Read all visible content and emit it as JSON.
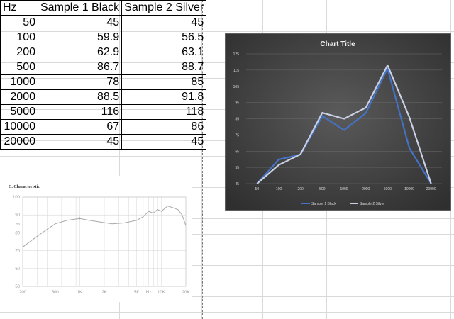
{
  "table": {
    "headers": [
      "Hz",
      "Sample 1 Black",
      "Sample 2 Silver"
    ],
    "rows": [
      [
        "50",
        "45",
        "45"
      ],
      [
        "100",
        "59.9",
        "56.5"
      ],
      [
        "200",
        "62.9",
        "63.1"
      ],
      [
        "500",
        "86.7",
        "88.7"
      ],
      [
        "1000",
        "78",
        "85"
      ],
      [
        "2000",
        "88.5",
        "91.8"
      ],
      [
        "5000",
        "116",
        "118"
      ],
      [
        "10000",
        "67",
        "86"
      ],
      [
        "20000",
        "45",
        "45"
      ]
    ]
  },
  "chart_data": {
    "type": "line",
    "title": "Chart Title",
    "categories": [
      "50",
      "100",
      "200",
      "500",
      "1000",
      "2000",
      "5000",
      "10000",
      "20000"
    ],
    "series": [
      {
        "name": "Sample 1 Black",
        "values": [
          45,
          59.9,
          62.9,
          86.7,
          78,
          88.5,
          116,
          67,
          45
        ],
        "color": "#4472c4"
      },
      {
        "name": "Sample 2 Silver",
        "values": [
          45,
          56.5,
          63.1,
          88.7,
          85,
          91.8,
          118,
          86,
          45
        ],
        "color": "#c9d0e6"
      }
    ],
    "ylim": [
      45,
      125
    ],
    "yticks": [
      "45",
      "55",
      "65",
      "75",
      "85",
      "95",
      "105",
      "115",
      "125"
    ],
    "grid": true,
    "legend": "bottom",
    "background": "#3f3f3f"
  },
  "characteristic": {
    "title": "C. Characteristic",
    "unit": "dB",
    "yticks": [
      "100",
      "90",
      "80",
      "70",
      "60",
      "50"
    ],
    "xticks": [
      "200",
      "500",
      "1K",
      "2K",
      "5K",
      "Hz",
      "10K",
      "20K"
    ]
  }
}
